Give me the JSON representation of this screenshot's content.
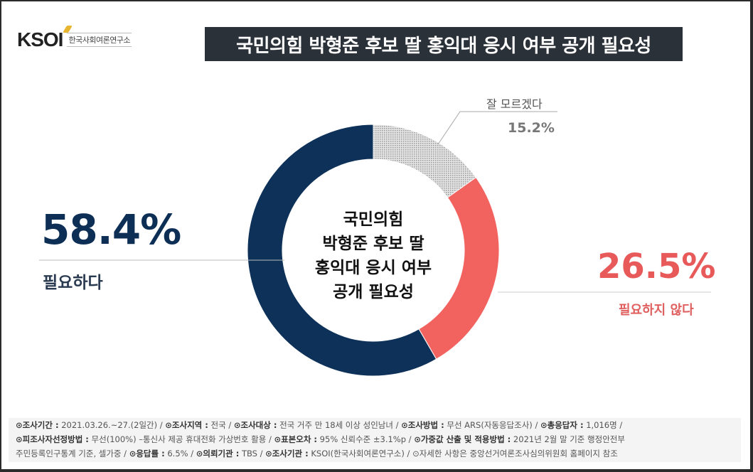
{
  "logo": {
    "mark": "KSOI",
    "subtitle": "한국사회여론연구소"
  },
  "title": "국민의힘 박형준 후보 딸 홍익대 응시 여부 공개 필요성",
  "center_label": [
    "국민의힘",
    "박형준 후보 딸",
    "홍익대 응시 여부",
    "공개 필요성"
  ],
  "labels": {
    "needed": {
      "value": "58.4%",
      "text": "필요하다",
      "color": "#0d2f55"
    },
    "not_needed": {
      "value": "26.5%",
      "text": "필요하지 않다",
      "color": "#f2625f"
    },
    "dont_know": {
      "value": "15.2%",
      "text": "잘 모르겠다",
      "color": "#c8c8c8"
    }
  },
  "footer": {
    "line1": [
      {
        "k": "⊙조사기간 :",
        "v": " 2021.03.26.~27.(2일간)  / "
      },
      {
        "k": "⊙조사지역 :",
        "v": " 전국 / "
      },
      {
        "k": "⊙조사대상 :",
        "v": " 전국 거주 만 18세 이상 성인남녀 / "
      },
      {
        "k": "⊙조사방법 :",
        "v": " 무선 ARS(자동응답조사) / "
      },
      {
        "k": "⊙총응답자 :",
        "v": " 1,016명 /"
      }
    ],
    "line2": [
      {
        "k": "⊙피조사자선정방법 :",
        "v": " 무선(100%) –통신사 제공 휴대전화 가상번호 활용 / "
      },
      {
        "k": "⊙표본오차 :",
        "v": " 95% 신뢰수준 ±3.1%p / "
      },
      {
        "k": "⊙가중값 산출 및 적용방법 :",
        "v": " 2021년 2월 말 기준 행정안전부"
      }
    ],
    "line3": [
      {
        "k": "",
        "v": "주민등록인구통계 기준, 셀가중 / "
      },
      {
        "k": "⊙응답률 :",
        "v": " 6.5% / "
      },
      {
        "k": "⊙의뢰기관 :",
        "v": " TBS / "
      },
      {
        "k": "⊙조사기관 :",
        "v": " KSOI(한국사회여론연구소) / "
      },
      {
        "k": "",
        "v": "⊙자세한 사항은 중앙선거여론조사심의위원회 홈페이지 참조"
      }
    ]
  },
  "chart_data": {
    "type": "pie",
    "subtype": "donut",
    "title": "국민의힘 박형준 후보 딸 홍익대 응시 여부 공개 필요성",
    "categories": [
      "잘 모르겠다",
      "필요하지 않다",
      "필요하다"
    ],
    "values": [
      15.2,
      26.5,
      58.4
    ],
    "colors": [
      "#c8c8c8",
      "#f2625f",
      "#0d3158"
    ],
    "start_angle": "12 o'clock, clockwise",
    "unit": "%"
  }
}
